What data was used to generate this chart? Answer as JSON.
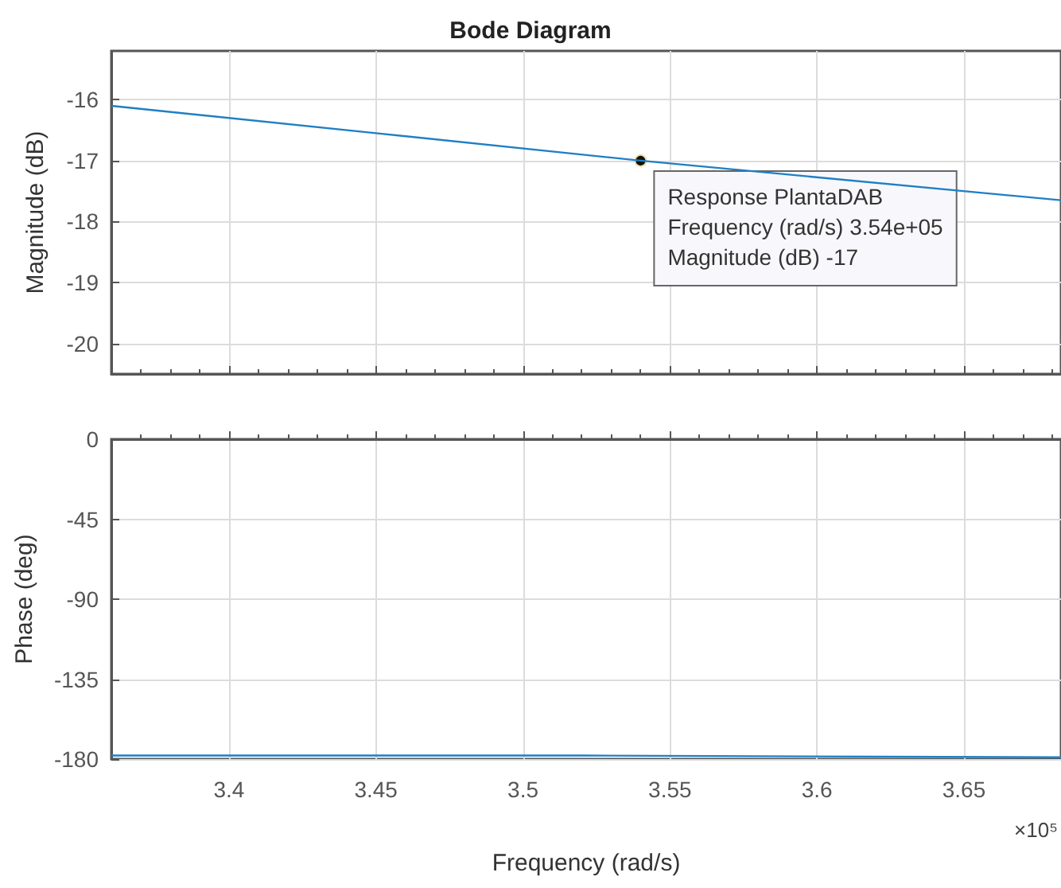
{
  "chart_data": [
    {
      "type": "line",
      "title": "Bode Diagram",
      "ylabel": "Magnitude (dB)",
      "x": [
        3.36,
        3.45,
        3.54,
        3.683
      ],
      "series": [
        {
          "color": "#1f7fc4",
          "values": [
            -16.1,
            -16.55,
            -17,
            -17.65
          ]
        }
      ],
      "xlim": [
        3.36,
        3.683
      ],
      "xticks": [
        3.4,
        3.45,
        3.5,
        3.55,
        3.6,
        3.65
      ],
      "ylim": [
        -20.5,
        -15.2
      ],
      "yticks": [
        -20,
        -19,
        -18,
        -17,
        -16
      ],
      "grid": true,
      "tick_labels": "y",
      "marker": "none",
      "annotations": [
        {
          "text": "Response PlantaDAB\nFrequency (rad/s) 3.54e+05\nMagnitude (dB) -17",
          "x": 3.54,
          "y": -17
        }
      ]
    },
    {
      "type": "line",
      "xlabel": "Frequency (rad/s)",
      "ylabel": "Phase (deg)",
      "x": [
        3.36,
        3.52,
        3.683
      ],
      "series": [
        {
          "color": "#1f7fc4",
          "values": [
            -178,
            -178,
            -179
          ]
        }
      ],
      "xlim": [
        3.36,
        3.683
      ],
      "xticks": [
        3.4,
        3.45,
        3.5,
        3.55,
        3.6,
        3.65
      ],
      "ylim": [
        -180,
        0
      ],
      "yticks": [
        -180,
        -135,
        -90,
        -45,
        0
      ],
      "grid": true,
      "marker": "none",
      "annotations": [
        "×10⁵"
      ]
    }
  ]
}
